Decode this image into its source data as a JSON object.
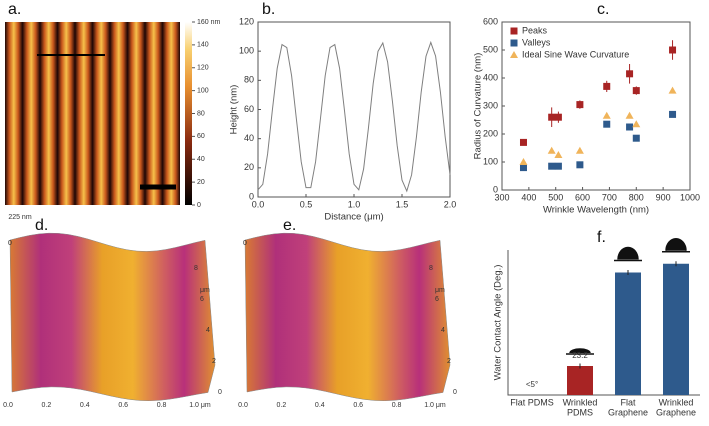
{
  "chart_data": [
    {
      "type": "image",
      "panel": "a.",
      "clim": [
        0,
        160
      ],
      "cticks": [
        {
          "value": 160,
          "label": "160 nm"
        },
        140,
        120,
        100,
        80,
        60,
        40,
        20,
        0
      ]
    },
    {
      "type": "line",
      "panel": "b.",
      "xlabel": "Distance (μm)",
      "ylabel": "Height (nm)",
      "color": "#7f7f7f",
      "x": [
        0,
        0.05,
        0.1,
        0.15,
        0.2,
        0.25,
        0.3,
        0.35,
        0.4,
        0.45,
        0.5,
        0.55,
        0.6,
        0.65,
        0.7,
        0.75,
        0.8,
        0.85,
        0.9,
        0.95,
        1.0,
        1.05,
        1.1,
        1.15,
        1.2,
        1.25,
        1.3,
        1.35,
        1.4,
        1.45,
        1.5,
        1.55,
        1.6,
        1.65,
        1.7,
        1.75,
        1.8,
        1.85,
        1.9,
        1.95,
        2.0
      ],
      "values": [
        4.9,
        8.7,
        29.5,
        59.8,
        88.2,
        104.5,
        102.5,
        83.2,
        53.4,
        24.2,
        6.4,
        6.4,
        24.2,
        53.4,
        83.2,
        102.5,
        104.5,
        88.2,
        59.8,
        29.5,
        8.7,
        4.9,
        19.2,
        47.1,
        77.9,
        99.9,
        105.6,
        92.6,
        65.8,
        35.1,
        11.6,
        4.1,
        15.2,
        41.0,
        72.0,
        96.5,
        106,
        96.6,
        72.0,
        41.1,
        15.3
      ],
      "xlim": [
        0,
        2
      ],
      "xticks": [
        {
          "value": 0,
          "label": "0.0"
        },
        {
          "value": 0.5,
          "label": "0.5"
        },
        {
          "value": 1,
          "label": "1.0"
        },
        {
          "value": 1.5,
          "label": "1.5"
        },
        {
          "value": 2,
          "label": "2.0"
        }
      ],
      "ylim": [
        0,
        120
      ],
      "yticks": [
        0,
        20,
        40,
        60,
        80,
        100,
        120
      ]
    },
    {
      "type": "scatter",
      "panel": "c.",
      "xlabel": "Wrinkle Wavelength (nm)",
      "ylabel": "Radius of Curvature (nm)",
      "legend": "top-left",
      "x": [
        380,
        485,
        510,
        590,
        690,
        775,
        800,
        935
      ],
      "series": [
        {
          "name": "Peaks",
          "color": "#a82424",
          "marker": "square",
          "values": [
            170,
            260,
            260,
            305,
            370,
            415,
            355,
            500
          ],
          "errors": [
            10,
            35,
            20,
            15,
            20,
            35,
            15,
            35
          ]
        },
        {
          "name": "Valleys",
          "color": "#2e5a8c",
          "marker": "square",
          "values": [
            80,
            85,
            85,
            90,
            235,
            225,
            185,
            270
          ]
        },
        {
          "name": "Ideal Sine Wave Curvature",
          "color": "#f0b45a",
          "marker": "triangle",
          "values": [
            100,
            140,
            125,
            140,
            265,
            265,
            235,
            355
          ]
        }
      ],
      "xlim": [
        300,
        1000
      ],
      "xticks": [
        300,
        400,
        500,
        600,
        700,
        800,
        900,
        1000
      ],
      "ylim": [
        0,
        600
      ],
      "yticks": [
        0,
        100,
        200,
        300,
        400,
        500,
        600
      ]
    },
    {
      "type": "surface",
      "panel": "d.",
      "zticks": [
        {
          "value": 225,
          "label": "225 nm"
        },
        0
      ],
      "xticks": [
        {
          "value": 0,
          "label": "0.0"
        },
        {
          "value": 0.2,
          "label": "0.2"
        },
        {
          "value": 0.4,
          "label": "0.4"
        },
        {
          "value": 0.6,
          "label": "0.6"
        },
        {
          "value": 0.8,
          "label": "0.8"
        },
        {
          "value": 1,
          "label": "1.0 μm"
        }
      ],
      "yticks": [
        0,
        2,
        4,
        6,
        8
      ],
      "ylabel": "μm"
    },
    {
      "type": "surface",
      "panel": "e.",
      "zticks": [
        0
      ],
      "xticks": [
        {
          "value": 0,
          "label": "0.0"
        },
        {
          "value": 0.2,
          "label": "0.2"
        },
        {
          "value": 0.4,
          "label": "0.4"
        },
        {
          "value": 0.6,
          "label": "0.6"
        },
        {
          "value": 0.8,
          "label": "0.8"
        },
        {
          "value": 1,
          "label": "1.0 μm"
        }
      ],
      "yticks": [
        0,
        2,
        4,
        6,
        8
      ],
      "ylabel": "μm"
    },
    {
      "type": "bar",
      "panel": "f.",
      "ylabel": "Water Contact Angle (Deg.)",
      "categories": [
        [
          "Flat PDMS"
        ],
        [
          "Wrinkled",
          "PDMS"
        ],
        [
          "Flat",
          "Graphene"
        ],
        [
          "Wrinkled",
          "Graphene"
        ]
      ],
      "values": [
        null,
        23.2,
        98,
        105
      ],
      "errors": [
        null,
        2,
        2,
        2
      ],
      "value_labels": [
        "<5°",
        "23.2",
        null,
        null
      ],
      "colors": [
        "#2e5a8c",
        "#a82424",
        "#2e5a8c",
        "#2e5a8c"
      ],
      "ylim": [
        0,
        116
      ]
    }
  ]
}
